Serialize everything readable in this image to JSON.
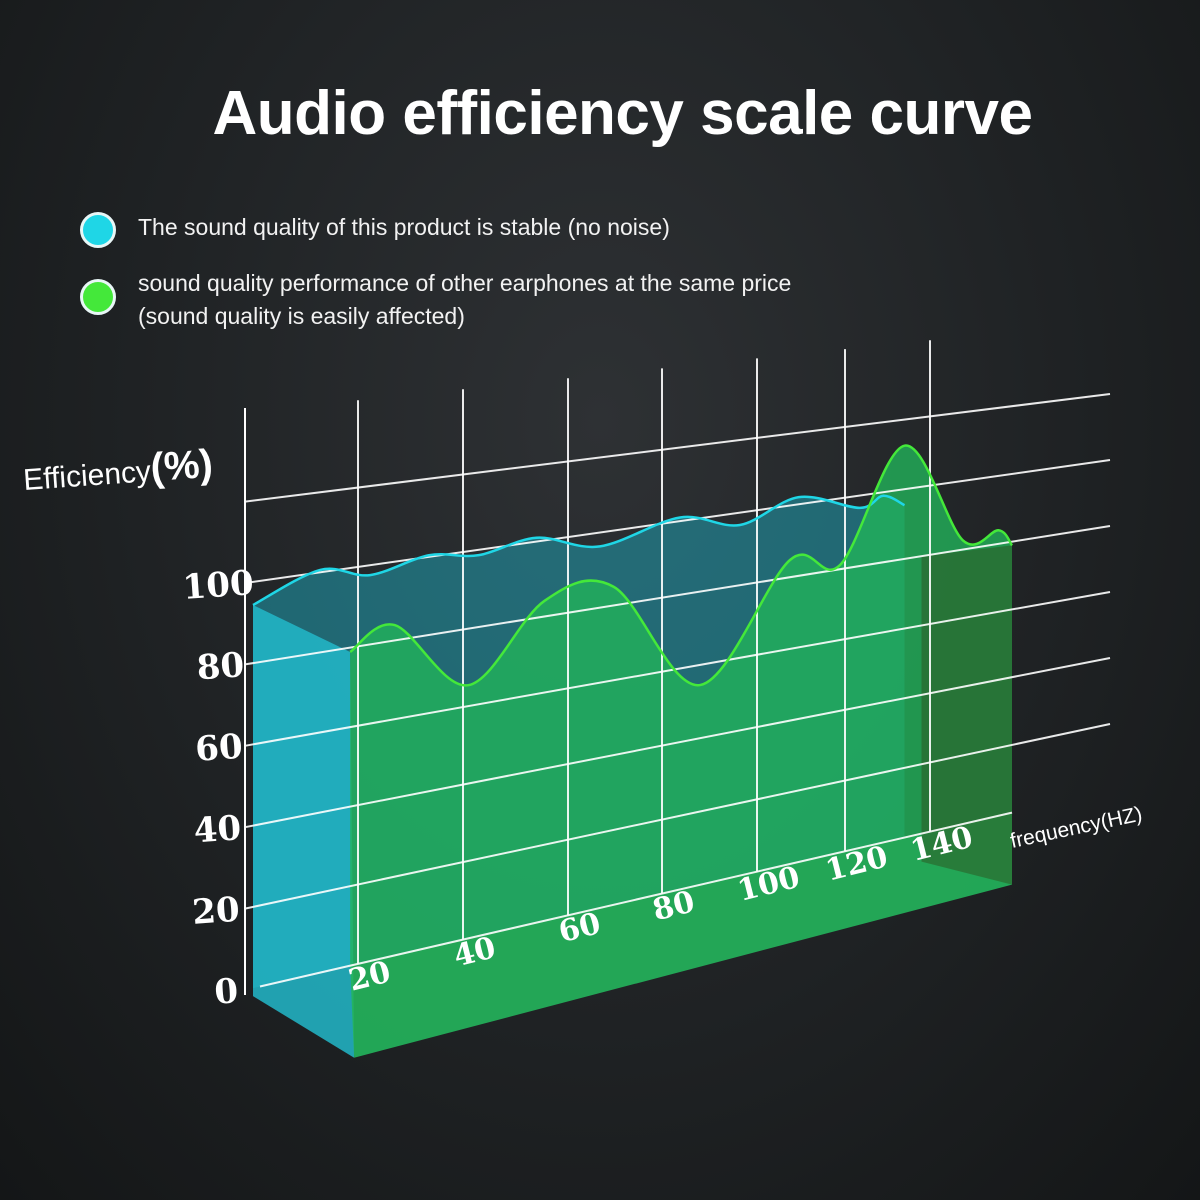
{
  "chart_data": {
    "type": "area",
    "title": "Audio efficiency scale curve",
    "ylabel": "Efficiency(%)",
    "xlabel": "frequency(HZ)",
    "x_ticks": [
      20,
      40,
      60,
      80,
      100,
      120,
      140
    ],
    "y_ticks": [
      0,
      20,
      40,
      60,
      80,
      100
    ],
    "ylim": [
      0,
      120
    ],
    "xlim": [
      0,
      160
    ],
    "grid": true,
    "legend_placement": "top-left",
    "series": [
      {
        "name": "The sound quality of this product is stable (no noise)",
        "color": "#1fd6e6",
        "x": [
          0,
          12.8,
          22.3,
          33.5,
          43,
          54,
          66.8,
          83.8,
          96.4,
          109.5,
          123.5,
          129,
          134
        ],
        "values": [
          94.3,
          100.6,
          97.5,
          100.4,
          98.6,
          101,
          96.3,
          101,
          96.6,
          102,
          96.5,
          99,
          95.4
        ]
      },
      {
        "name": "sound quality performance of other earphones at the same price (sound quality is easily affected)",
        "name_lines": [
          "sound quality performance of other earphones at the same price",
          "(sound quality is easily affected)"
        ],
        "color": "#44e83a",
        "x": [
          18.5,
          27,
          41,
          55.5,
          69.7,
          88,
          107.5,
          118.9,
          134,
          148,
          156.7,
          160
        ],
        "values": [
          78.9,
          83.9,
          65.4,
          84.1,
          85,
          54.5,
          84.8,
          81.2,
          112.5,
          82.7,
          84,
          78.9
        ]
      }
    ]
  }
}
